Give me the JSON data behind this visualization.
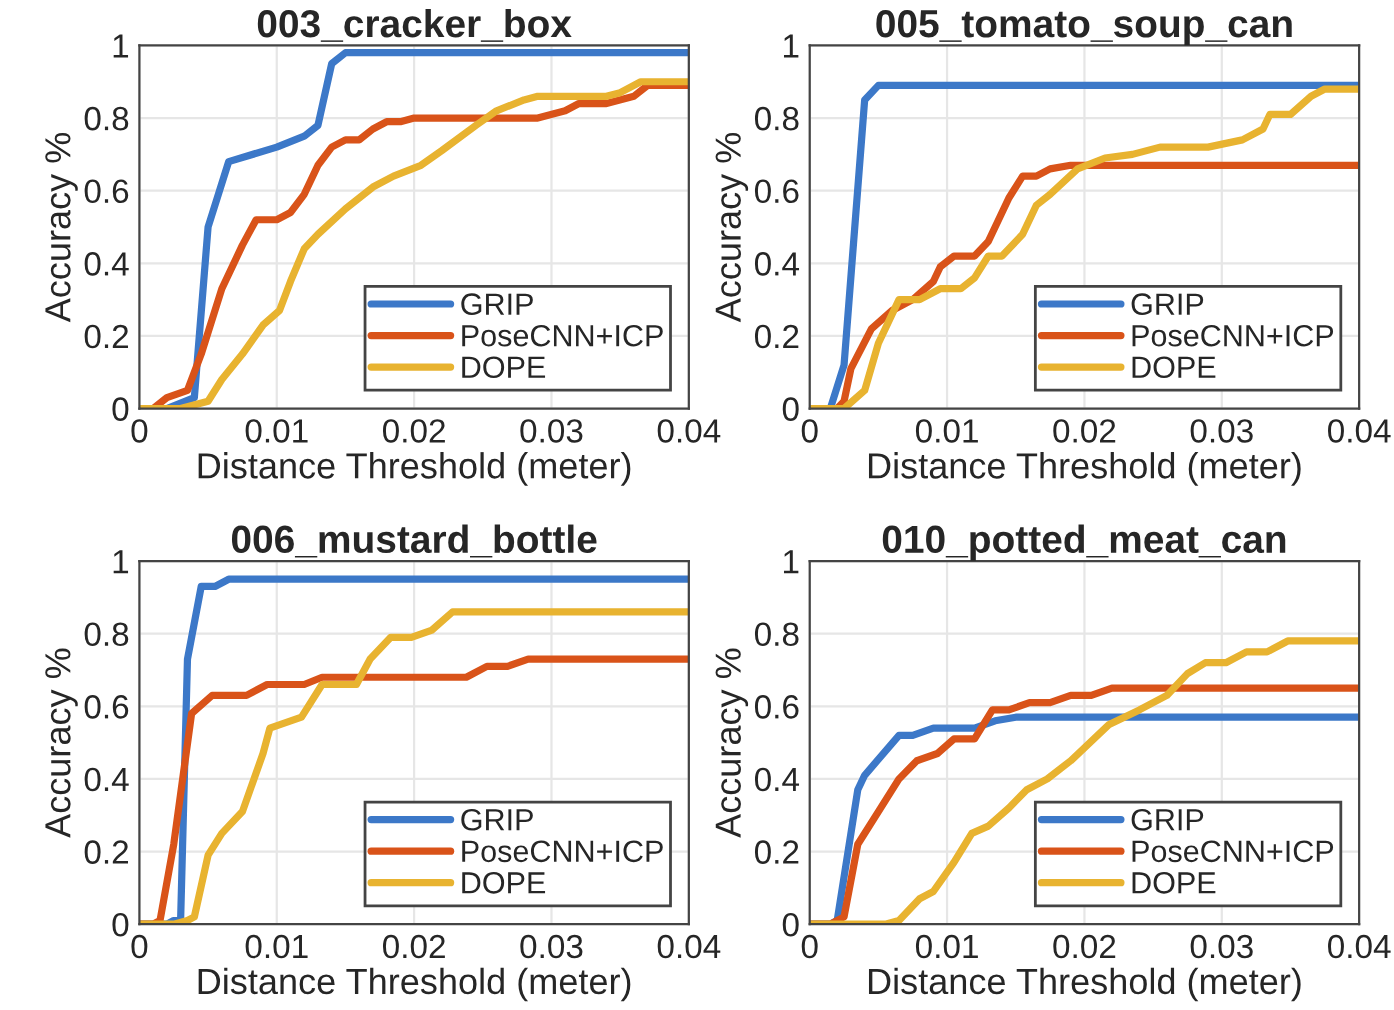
{
  "chart_data": [
    {
      "type": "line",
      "title": "003_cracker_box",
      "xlabel": "Distance Threshold (meter)",
      "ylabel": "Accuracy %",
      "xlim": [
        0,
        0.04
      ],
      "ylim": [
        0,
        1
      ],
      "xticks": [
        0,
        0.01,
        0.02,
        0.03,
        0.04
      ],
      "yticks": [
        0,
        0.2,
        0.4,
        0.6,
        0.8,
        1
      ],
      "grid": true,
      "legend": "bottom right",
      "marker": "none",
      "line_style": "solid",
      "series": [
        {
          "name": "GRIP",
          "color": "#3c78c8",
          "x": [
            0,
            0.002,
            0.004,
            0.005,
            0.0065,
            0.01,
            0.012,
            0.013,
            0.014,
            0.015,
            0.04
          ],
          "values": [
            0,
            0,
            0.03,
            0.5,
            0.68,
            0.72,
            0.75,
            0.78,
            0.95,
            0.98,
            0.98
          ]
        },
        {
          "name": "PoseCNN+ICP",
          "color": "#d95319",
          "x": [
            0,
            0.001,
            0.002,
            0.0035,
            0.0045,
            0.006,
            0.0075,
            0.0085,
            0.01,
            0.011,
            0.012,
            0.013,
            0.014,
            0.015,
            0.016,
            0.017,
            0.018,
            0.019,
            0.02,
            0.021,
            0.025,
            0.029,
            0.031,
            0.032,
            0.034,
            0.036,
            0.037,
            0.04
          ],
          "values": [
            0,
            0,
            0.03,
            0.05,
            0.15,
            0.33,
            0.45,
            0.52,
            0.52,
            0.54,
            0.59,
            0.67,
            0.72,
            0.74,
            0.74,
            0.77,
            0.79,
            0.79,
            0.8,
            0.8,
            0.8,
            0.8,
            0.82,
            0.84,
            0.84,
            0.86,
            0.89,
            0.89
          ]
        },
        {
          "name": "DOPE",
          "color": "#e8b330",
          "x": [
            0,
            0.003,
            0.005,
            0.006,
            0.0075,
            0.009,
            0.0102,
            0.011,
            0.012,
            0.013,
            0.015,
            0.017,
            0.0185,
            0.0205,
            0.022,
            0.0245,
            0.026,
            0.028,
            0.029,
            0.034,
            0.035,
            0.0365,
            0.04
          ],
          "values": [
            0,
            0,
            0.02,
            0.08,
            0.15,
            0.23,
            0.27,
            0.35,
            0.44,
            0.48,
            0.55,
            0.61,
            0.64,
            0.67,
            0.71,
            0.78,
            0.82,
            0.85,
            0.86,
            0.86,
            0.87,
            0.9,
            0.9
          ]
        }
      ]
    },
    {
      "type": "line",
      "title": "005_tomato_soup_can",
      "xlabel": "Distance Threshold (meter)",
      "ylabel": "Accuracy %",
      "xlim": [
        0,
        0.04
      ],
      "ylim": [
        0,
        1
      ],
      "xticks": [
        0,
        0.01,
        0.02,
        0.03,
        0.04
      ],
      "yticks": [
        0,
        0.2,
        0.4,
        0.6,
        0.8,
        1
      ],
      "grid": true,
      "legend": "bottom right",
      "marker": "none",
      "line_style": "solid",
      "series": [
        {
          "name": "GRIP",
          "color": "#3c78c8",
          "x": [
            0,
            0.0015,
            0.0025,
            0.004,
            0.005,
            0.04
          ],
          "values": [
            0,
            0,
            0.12,
            0.85,
            0.89,
            0.89
          ]
        },
        {
          "name": "PoseCNN+ICP",
          "color": "#d95319",
          "x": [
            0,
            0.002,
            0.0025,
            0.003,
            0.0045,
            0.006,
            0.0075,
            0.009,
            0.0095,
            0.0105,
            0.012,
            0.013,
            0.0145,
            0.0155,
            0.0165,
            0.0175,
            0.019,
            0.04
          ],
          "values": [
            0,
            0,
            0.02,
            0.11,
            0.22,
            0.27,
            0.3,
            0.35,
            0.39,
            0.42,
            0.42,
            0.46,
            0.58,
            0.64,
            0.64,
            0.66,
            0.67,
            0.67
          ]
        },
        {
          "name": "DOPE",
          "color": "#e8b330",
          "x": [
            0,
            0.0025,
            0.004,
            0.005,
            0.0065,
            0.008,
            0.0095,
            0.011,
            0.012,
            0.013,
            0.014,
            0.0155,
            0.0165,
            0.0175,
            0.0195,
            0.0215,
            0.0235,
            0.0255,
            0.029,
            0.0315,
            0.033,
            0.0335,
            0.035,
            0.0365,
            0.0375,
            0.04
          ],
          "values": [
            0,
            0,
            0.05,
            0.18,
            0.3,
            0.3,
            0.33,
            0.33,
            0.36,
            0.42,
            0.42,
            0.48,
            0.56,
            0.59,
            0.66,
            0.69,
            0.7,
            0.72,
            0.72,
            0.74,
            0.77,
            0.81,
            0.81,
            0.86,
            0.88,
            0.88
          ]
        }
      ]
    },
    {
      "type": "line",
      "title": "006_mustard_bottle",
      "xlabel": "Distance Threshold (meter)",
      "ylabel": "Accuracy %",
      "xlim": [
        0,
        0.04
      ],
      "ylim": [
        0,
        1
      ],
      "xticks": [
        0,
        0.01,
        0.02,
        0.03,
        0.04
      ],
      "yticks": [
        0,
        0.2,
        0.4,
        0.6,
        0.8,
        1
      ],
      "grid": true,
      "legend": "bottom right",
      "marker": "none",
      "line_style": "solid",
      "series": [
        {
          "name": "GRIP",
          "color": "#3c78c8",
          "x": [
            0,
            0.002,
            0.0025,
            0.003,
            0.0035,
            0.0045,
            0.0055,
            0.0065,
            0.04
          ],
          "values": [
            0,
            0,
            0.01,
            0.01,
            0.73,
            0.93,
            0.93,
            0.95,
            0.95
          ]
        },
        {
          "name": "PoseCNN+ICP",
          "color": "#d95319",
          "x": [
            0,
            0.001,
            0.0015,
            0.0025,
            0.0038,
            0.0053,
            0.0078,
            0.0093,
            0.012,
            0.0133,
            0.0238,
            0.0253,
            0.0268,
            0.0283,
            0.04
          ],
          "values": [
            0,
            0,
            0.01,
            0.22,
            0.58,
            0.63,
            0.63,
            0.66,
            0.66,
            0.68,
            0.68,
            0.71,
            0.71,
            0.73,
            0.73
          ]
        },
        {
          "name": "DOPE",
          "color": "#e8b330",
          "x": [
            0,
            0.0025,
            0.0035,
            0.004,
            0.005,
            0.006,
            0.0075,
            0.009,
            0.0095,
            0.0118,
            0.0133,
            0.0158,
            0.0168,
            0.0183,
            0.0198,
            0.0213,
            0.0228,
            0.04
          ],
          "values": [
            0,
            0,
            0.01,
            0.02,
            0.19,
            0.25,
            0.31,
            0.47,
            0.54,
            0.57,
            0.66,
            0.66,
            0.73,
            0.79,
            0.79,
            0.81,
            0.86,
            0.86
          ]
        }
      ]
    },
    {
      "type": "line",
      "title": "010_potted_meat_can",
      "xlabel": "Distance Threshold (meter)",
      "ylabel": "Accuracy %",
      "xlim": [
        0,
        0.04
      ],
      "ylim": [
        0,
        1
      ],
      "xticks": [
        0,
        0.01,
        0.02,
        0.03,
        0.04
      ],
      "yticks": [
        0,
        0.2,
        0.4,
        0.6,
        0.8,
        1
      ],
      "grid": true,
      "legend": "bottom right",
      "marker": "none",
      "line_style": "solid",
      "series": [
        {
          "name": "GRIP",
          "color": "#3c78c8",
          "x": [
            0,
            0.0015,
            0.002,
            0.0035,
            0.004,
            0.0065,
            0.0075,
            0.009,
            0.012,
            0.0135,
            0.015,
            0.04
          ],
          "values": [
            0,
            0,
            0.01,
            0.37,
            0.41,
            0.52,
            0.52,
            0.54,
            0.54,
            0.56,
            0.57,
            0.57
          ]
        },
        {
          "name": "PoseCNN+ICP",
          "color": "#d95319",
          "x": [
            0,
            0.0015,
            0.0025,
            0.0035,
            0.005,
            0.0065,
            0.0078,
            0.0093,
            0.0105,
            0.012,
            0.0133,
            0.0145,
            0.016,
            0.0175,
            0.019,
            0.0205,
            0.022,
            0.04
          ],
          "values": [
            0,
            0,
            0.02,
            0.22,
            0.31,
            0.4,
            0.45,
            0.47,
            0.51,
            0.51,
            0.59,
            0.59,
            0.61,
            0.61,
            0.63,
            0.63,
            0.65,
            0.65
          ]
        },
        {
          "name": "DOPE",
          "color": "#e8b330",
          "x": [
            0,
            0.0055,
            0.0065,
            0.008,
            0.009,
            0.0105,
            0.0118,
            0.013,
            0.0145,
            0.0158,
            0.0173,
            0.019,
            0.0218,
            0.024,
            0.026,
            0.0275,
            0.0288,
            0.0303,
            0.0318,
            0.0333,
            0.0348,
            0.04
          ],
          "values": [
            0,
            0,
            0.01,
            0.07,
            0.09,
            0.17,
            0.25,
            0.27,
            0.32,
            0.37,
            0.4,
            0.45,
            0.55,
            0.59,
            0.63,
            0.69,
            0.72,
            0.72,
            0.75,
            0.75,
            0.78,
            0.78
          ]
        }
      ]
    }
  ]
}
